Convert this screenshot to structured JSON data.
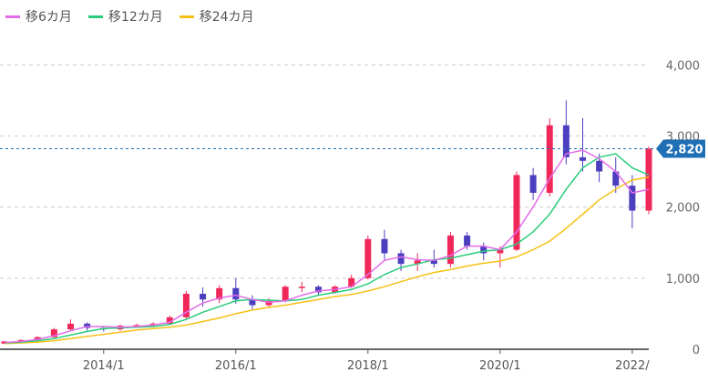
{
  "chart_data": {
    "type": "candlestick",
    "legend": [
      {
        "label": "移6カ月",
        "color": "#e36ce8"
      },
      {
        "label": "移12カ月",
        "color": "#29cc7a"
      },
      {
        "label": "移24カ月",
        "color": "#f5c116"
      }
    ],
    "yaxis": {
      "ticks": [
        4000,
        3000,
        2000,
        1000,
        0
      ],
      "tick_labels": [
        "4,000",
        "3,000",
        "2,000",
        "1,000",
        "0"
      ],
      "ylim": [
        0,
        4400
      ]
    },
    "xaxis": {
      "ticks": [
        "2014-01",
        "2016-01",
        "2018-01",
        "2020-01",
        "2022-01"
      ],
      "tick_labels": [
        "2014/1",
        "2016/1",
        "2018/1",
        "2020/1",
        "2022/"
      ],
      "start": "2012-07",
      "end": "2022-04"
    },
    "current_price": {
      "value": 2820,
      "label": "2,820"
    },
    "up_color": "#f0285a",
    "down_color": "#4b3fbf",
    "wick_color": "#999999",
    "grid": true,
    "candles": [
      {
        "month": "2012-07",
        "o": 80,
        "h": 120,
        "l": 70,
        "c": 110
      },
      {
        "month": "2012-10",
        "o": 110,
        "h": 140,
        "l": 90,
        "c": 130
      },
      {
        "month": "2013-01",
        "o": 130,
        "h": 180,
        "l": 110,
        "c": 170
      },
      {
        "month": "2013-04",
        "o": 170,
        "h": 300,
        "l": 160,
        "c": 280
      },
      {
        "month": "2013-07",
        "o": 280,
        "h": 420,
        "l": 250,
        "c": 360
      },
      {
        "month": "2013-10",
        "o": 360,
        "h": 380,
        "l": 260,
        "c": 300
      },
      {
        "month": "2014-01",
        "o": 300,
        "h": 330,
        "l": 250,
        "c": 280
      },
      {
        "month": "2014-04",
        "o": 280,
        "h": 350,
        "l": 260,
        "c": 330
      },
      {
        "month": "2014-07",
        "o": 330,
        "h": 360,
        "l": 300,
        "c": 340
      },
      {
        "month": "2014-10",
        "o": 340,
        "h": 380,
        "l": 320,
        "c": 360
      },
      {
        "month": "2015-01",
        "o": 360,
        "h": 470,
        "l": 350,
        "c": 450
      },
      {
        "month": "2015-04",
        "o": 450,
        "h": 820,
        "l": 430,
        "c": 780
      },
      {
        "month": "2015-07",
        "o": 780,
        "h": 870,
        "l": 600,
        "c": 700
      },
      {
        "month": "2015-10",
        "o": 700,
        "h": 900,
        "l": 650,
        "c": 860
      },
      {
        "month": "2016-01",
        "o": 860,
        "h": 1000,
        "l": 640,
        "c": 700
      },
      {
        "month": "2016-04",
        "o": 700,
        "h": 760,
        "l": 560,
        "c": 620
      },
      {
        "month": "2016-07",
        "o": 620,
        "h": 720,
        "l": 580,
        "c": 680
      },
      {
        "month": "2016-10",
        "o": 680,
        "h": 900,
        "l": 660,
        "c": 880
      },
      {
        "month": "2017-01",
        "o": 880,
        "h": 950,
        "l": 800,
        "c": 880
      },
      {
        "month": "2017-04",
        "o": 880,
        "h": 900,
        "l": 760,
        "c": 800
      },
      {
        "month": "2017-07",
        "o": 800,
        "h": 900,
        "l": 780,
        "c": 880
      },
      {
        "month": "2017-10",
        "o": 880,
        "h": 1050,
        "l": 860,
        "c": 1000
      },
      {
        "month": "2018-01",
        "o": 1000,
        "h": 1600,
        "l": 980,
        "c": 1550
      },
      {
        "month": "2018-04",
        "o": 1550,
        "h": 1680,
        "l": 1250,
        "c": 1350
      },
      {
        "month": "2018-07",
        "o": 1350,
        "h": 1400,
        "l": 1100,
        "c": 1200
      },
      {
        "month": "2018-10",
        "o": 1200,
        "h": 1350,
        "l": 1100,
        "c": 1250
      },
      {
        "month": "2019-01",
        "o": 1250,
        "h": 1400,
        "l": 1150,
        "c": 1200
      },
      {
        "month": "2019-04",
        "o": 1200,
        "h": 1650,
        "l": 1150,
        "c": 1600
      },
      {
        "month": "2019-07",
        "o": 1600,
        "h": 1650,
        "l": 1400,
        "c": 1450
      },
      {
        "month": "2019-10",
        "o": 1450,
        "h": 1500,
        "l": 1250,
        "c": 1350
      },
      {
        "month": "2020-01",
        "o": 1350,
        "h": 1450,
        "l": 1150,
        "c": 1400
      },
      {
        "month": "2020-04",
        "o": 1400,
        "h": 2500,
        "l": 1380,
        "c": 2450
      },
      {
        "month": "2020-07",
        "o": 2450,
        "h": 2550,
        "l": 2100,
        "c": 2200
      },
      {
        "month": "2020-10",
        "o": 2200,
        "h": 3250,
        "l": 2150,
        "c": 3150
      },
      {
        "month": "2021-01",
        "o": 3150,
        "h": 3500,
        "l": 2600,
        "c": 2700
      },
      {
        "month": "2021-04",
        "o": 2700,
        "h": 3250,
        "l": 2500,
        "c": 2650
      },
      {
        "month": "2021-07",
        "o": 2650,
        "h": 2750,
        "l": 2350,
        "c": 2500
      },
      {
        "month": "2021-10",
        "o": 2500,
        "h": 2700,
        "l": 2200,
        "c": 2300
      },
      {
        "month": "2022-01",
        "o": 2300,
        "h": 2450,
        "l": 1700,
        "c": 1950
      },
      {
        "month": "2022-04",
        "o": 1950,
        "h": 2850,
        "l": 1900,
        "c": 2820
      }
    ],
    "ma6": [
      95,
      110,
      140,
      190,
      260,
      320,
      320,
      310,
      320,
      340,
      380,
      520,
      650,
      720,
      760,
      700,
      660,
      680,
      760,
      820,
      840,
      880,
      1050,
      1250,
      1300,
      1260,
      1250,
      1320,
      1450,
      1450,
      1400,
      1650,
      2000,
      2400,
      2750,
      2800,
      2680,
      2500,
      2200,
      2250
    ],
    "ma12": [
      90,
      100,
      120,
      150,
      200,
      250,
      290,
      300,
      310,
      320,
      350,
      420,
      520,
      600,
      680,
      700,
      690,
      680,
      700,
      760,
      800,
      840,
      920,
      1050,
      1150,
      1200,
      1260,
      1280,
      1330,
      1380,
      1400,
      1480,
      1650,
      1900,
      2250,
      2550,
      2700,
      2750,
      2550,
      2450
    ],
    "ma24": [
      80,
      90,
      100,
      120,
      150,
      180,
      210,
      240,
      270,
      290,
      310,
      340,
      390,
      440,
      500,
      550,
      590,
      620,
      660,
      700,
      740,
      770,
      820,
      880,
      950,
      1020,
      1080,
      1120,
      1170,
      1210,
      1240,
      1300,
      1400,
      1520,
      1700,
      1900,
      2100,
      2250,
      2380,
      2420
    ]
  }
}
